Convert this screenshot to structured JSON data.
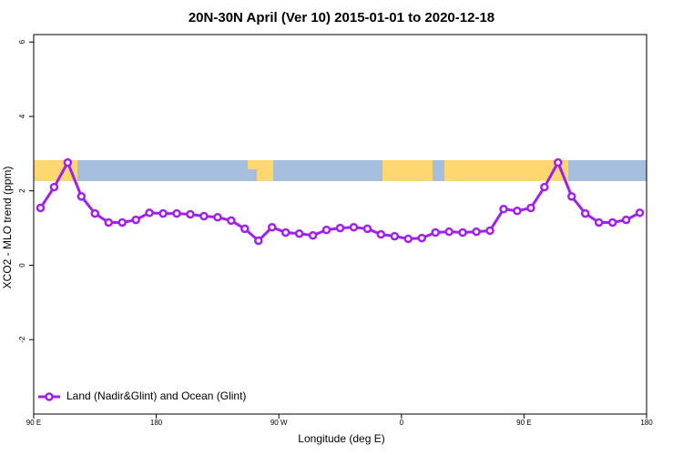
{
  "chart_data": {
    "type": "line",
    "title": "20N-30N April (Ver 10)   2015-01-01 to 2020-12-18",
    "xlabel": "Longitude (deg E)",
    "ylabel": "XCO2 - MLO trend (ppm)",
    "x": [
      95,
      105,
      115,
      125,
      135,
      145,
      155,
      165,
      175,
      185,
      195,
      205,
      215,
      225,
      235,
      245,
      255,
      265,
      275,
      285,
      295,
      305,
      315,
      325,
      335,
      345,
      355,
      365,
      375,
      385,
      395,
      405,
      415,
      425,
      435,
      445,
      455,
      465,
      475,
      485,
      495,
      505,
      515,
      525,
      535
    ],
    "series": [
      {
        "name": "Land (Nadir&Glint) and Ocean (Glint)",
        "color": "#a020f0",
        "values": [
          1.54,
          2.1,
          2.76,
          1.85,
          1.39,
          1.15,
          1.15,
          1.22,
          1.41,
          1.39,
          1.39,
          1.37,
          1.32,
          1.29,
          1.2,
          0.98,
          0.66,
          1.02,
          0.88,
          0.85,
          0.8,
          0.95,
          1.0,
          1.02,
          0.98,
          0.83,
          0.78,
          0.71,
          0.73,
          0.88,
          0.9,
          0.88,
          0.9,
          0.93,
          1.51,
          1.46,
          1.54,
          2.1,
          2.76,
          1.85,
          1.39,
          1.15,
          1.15,
          1.22,
          1.41
        ]
      }
    ],
    "xlim": [
      90,
      540
    ],
    "xticks": [
      {
        "value": 90,
        "label": "90 E"
      },
      180,
      {
        "value": 270,
        "label": "90 W"
      },
      {
        "value": 360,
        "label": "0"
      },
      {
        "value": 450,
        "label": "90 E"
      },
      {
        "value": 540,
        "label": "180"
      }
    ],
    "ylim": [
      -4,
      6.2
    ],
    "yticks": [
      6,
      4,
      2,
      0,
      -2
    ],
    "legend": "bottom-left"
  }
}
